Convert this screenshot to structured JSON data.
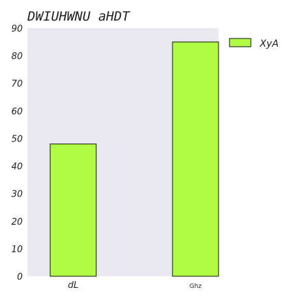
{
  "chart_data": {
    "type": "bar",
    "title": "DWIUHWNU aHDT",
    "categories": [
      "dL",
      "Ghz"
    ],
    "series": [
      {
        "name": "XyA",
        "values": [
          48,
          85
        ]
      }
    ],
    "ylim": [
      0,
      90
    ],
    "yticks": [
      0,
      10,
      20,
      30,
      40,
      50,
      60,
      70,
      80,
      90
    ],
    "grid": false,
    "legend": "right-outside-top",
    "colors": {
      "bar": "#b0fc45",
      "bar_edge": "#111111",
      "plot_bg": "#e9e9f2"
    }
  }
}
